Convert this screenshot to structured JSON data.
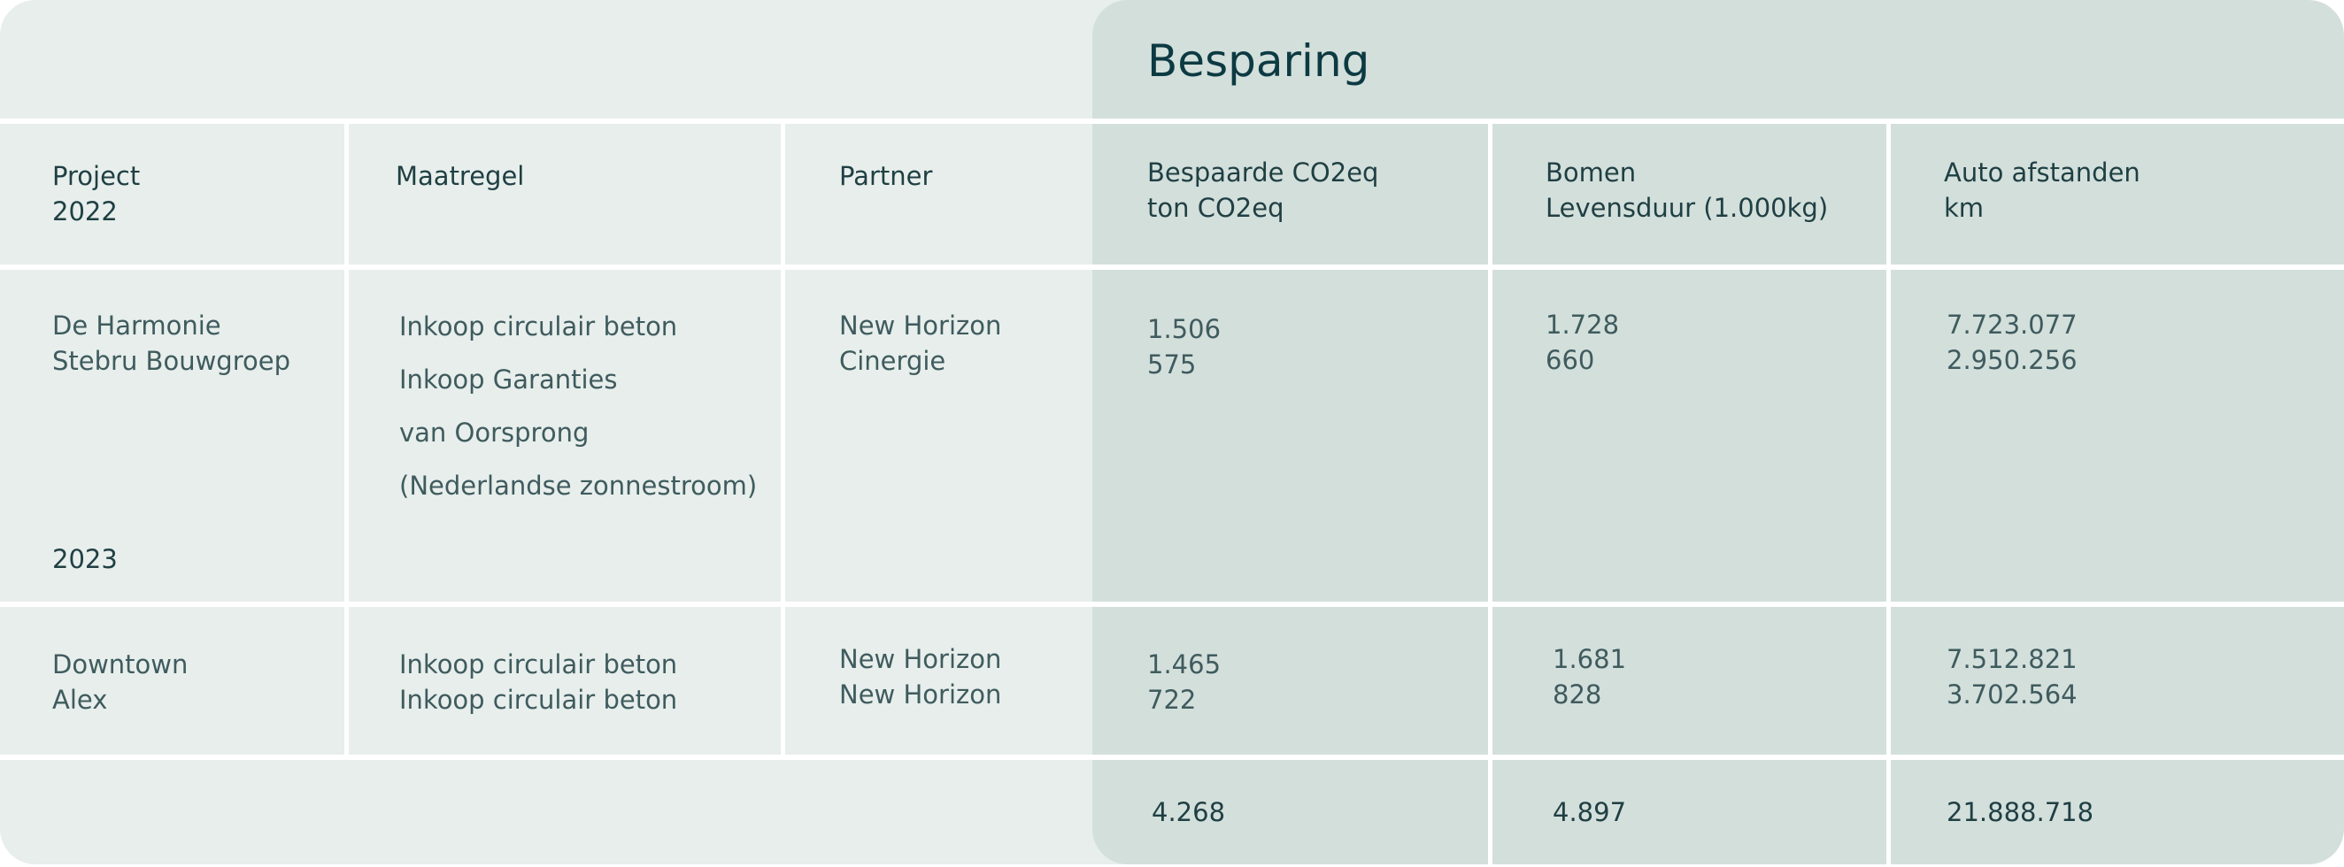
{
  "section_title": "Besparing",
  "headers": {
    "project": [
      "Project",
      "2022"
    ],
    "maatregel": "Maatregel",
    "partner": "Partner",
    "co2": [
      "Bespaarde CO2eq",
      "ton CO2eq"
    ],
    "bomen": [
      "Bomen",
      "Levensduur (1.000kg)"
    ],
    "auto": [
      "Auto afstanden",
      "km"
    ]
  },
  "rows": [
    {
      "project": [
        "De Harmonie",
        "Stebru Bouwgroep"
      ],
      "year_label": "2023",
      "maatregel": [
        "Inkoop circulair beton",
        "Inkoop Garanties",
        "van Oorsprong",
        "(Nederlandse zonnestroom)"
      ],
      "partner": [
        "New Horizon",
        "Cinergie"
      ],
      "co2": [
        "1.506",
        "575"
      ],
      "bomen": [
        "1.728",
        "660"
      ],
      "auto": [
        "7.723.077",
        "2.950.256"
      ]
    },
    {
      "project": [
        "Downtown",
        "Alex"
      ],
      "maatregel": [
        "Inkoop circulair beton",
        "Inkoop circulair beton"
      ],
      "partner": [
        "New Horizon",
        "New Horizon"
      ],
      "co2": [
        "1.465",
        "722"
      ],
      "bomen": [
        "1.681",
        "828"
      ],
      "auto": [
        "7.512.821",
        "3.702.564"
      ]
    }
  ],
  "totals": {
    "co2": "4.268",
    "bomen": "4.897",
    "auto": "21.888.718"
  }
}
